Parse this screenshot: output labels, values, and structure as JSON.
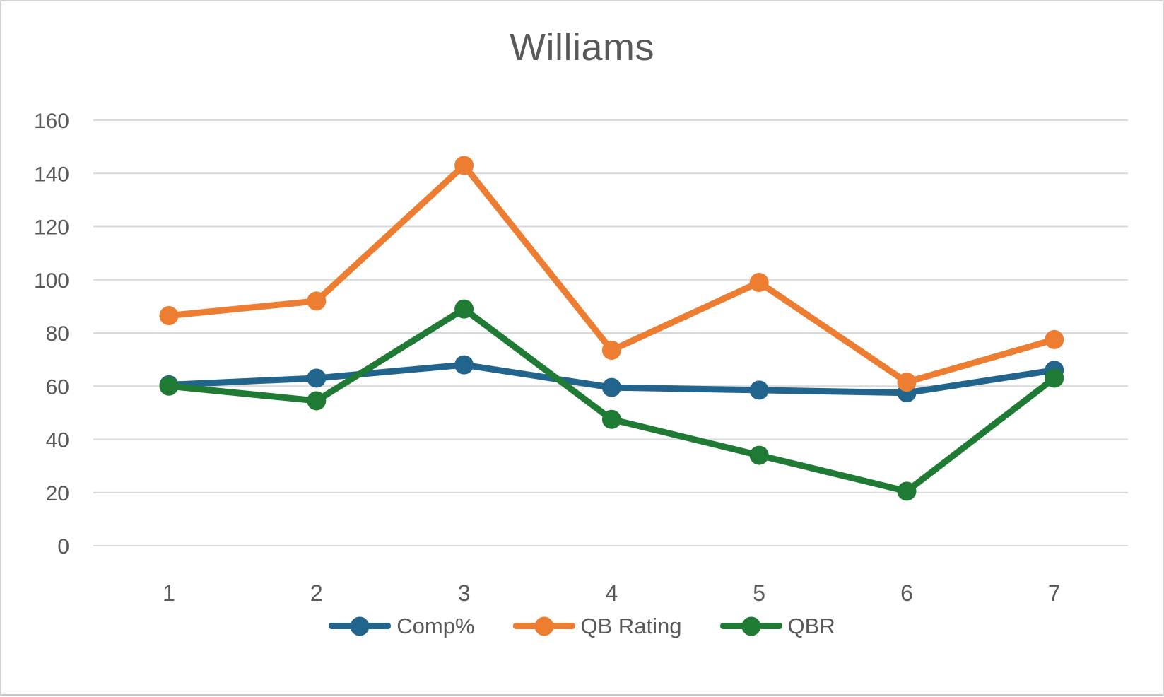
{
  "chart_data": {
    "type": "line",
    "title": "Williams",
    "categories": [
      "1",
      "2",
      "3",
      "4",
      "5",
      "6",
      "7"
    ],
    "series": [
      {
        "name": "Comp%",
        "color": "#21648C",
        "values": [
          60.5,
          63,
          68,
          59.5,
          58.5,
          57.5,
          66
        ]
      },
      {
        "name": "QB Rating",
        "color": "#ED7D31",
        "values": [
          86.5,
          92,
          143,
          73.5,
          99,
          61.5,
          77.5
        ]
      },
      {
        "name": "QBR",
        "color": "#1F7B34",
        "values": [
          60,
          54.5,
          89,
          47.5,
          34,
          20.5,
          63
        ]
      }
    ],
    "ylim": [
      0,
      160
    ],
    "ytick_step": 20,
    "yticks": [
      "0",
      "20",
      "40",
      "60",
      "80",
      "100",
      "120",
      "140",
      "160"
    ],
    "grid": true,
    "legend_position": "bottom",
    "marker": "circle",
    "text_color": "#595959",
    "grid_color": "#D9D9D9"
  }
}
